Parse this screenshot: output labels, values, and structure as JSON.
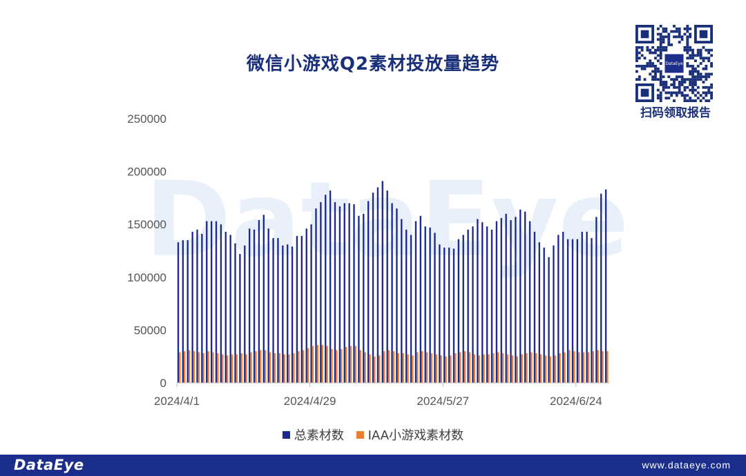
{
  "header": {
    "title": "微信小游戏Q2素材投放量趋势"
  },
  "qr": {
    "caption": "扫码领取报告",
    "logo_text": "DataEye"
  },
  "footer": {
    "brand": "DataEye",
    "website": "www.dataeye.com"
  },
  "watermark": "DataEye",
  "colors": {
    "total": "#1b2a8c",
    "iaa": "#ed7d31",
    "footer_bg": "#1b2e8c",
    "title": "#1a2f7a"
  },
  "chart_data": {
    "type": "bar",
    "title": "微信小游戏Q2素材投放量趋势",
    "xlabel": "",
    "ylabel": "",
    "ylim": [
      0,
      250000
    ],
    "yticks": [
      0,
      50000,
      100000,
      150000,
      200000,
      250000
    ],
    "ytick_labels": [
      "0",
      "50000",
      "100000",
      "150000",
      "200000",
      "250000"
    ],
    "x_tick_labels": [
      "2024/4/1",
      "2024/4/29",
      "2024/5/27",
      "2024/6/24"
    ],
    "x_tick_indices": [
      0,
      28,
      56,
      84
    ],
    "categories_start": "2024/4/1",
    "categories_end": "2024/6/30",
    "legend_position": "bottom",
    "grid": false,
    "series": [
      {
        "name": "总素材数",
        "values": [
          133000,
          135000,
          135000,
          143000,
          145000,
          141000,
          153000,
          153000,
          153000,
          150000,
          143000,
          140000,
          132000,
          122000,
          130000,
          146000,
          145000,
          154000,
          159000,
          146000,
          137000,
          137000,
          130000,
          131000,
          129000,
          139000,
          139000,
          146000,
          150000,
          165000,
          171000,
          178000,
          182000,
          171000,
          167000,
          170000,
          170000,
          169000,
          158000,
          160000,
          172000,
          180000,
          185000,
          191000,
          182000,
          170000,
          165000,
          155000,
          145000,
          140000,
          153000,
          158000,
          148000,
          147000,
          142000,
          131000,
          128000,
          128000,
          127000,
          136000,
          140000,
          145000,
          148000,
          155000,
          152000,
          148000,
          145000,
          153000,
          156000,
          160000,
          154000,
          157000,
          164000,
          162000,
          153000,
          143000,
          133000,
          128000,
          119000,
          130000,
          140000,
          143000,
          136000,
          136000,
          136000,
          143000,
          143000,
          137000,
          157000,
          179000,
          183000
        ]
      },
      {
        "name": "IAA小游戏素材数",
        "values": [
          29000,
          30000,
          31000,
          30000,
          29000,
          28000,
          30000,
          29000,
          28000,
          27000,
          26000,
          27000,
          27000,
          28000,
          27000,
          29000,
          30000,
          31000,
          31000,
          29000,
          28000,
          28000,
          27000,
          27000,
          28000,
          30000,
          31000,
          33000,
          35000,
          36000,
          36000,
          35000,
          32000,
          31000,
          32000,
          34000,
          35000,
          35000,
          31000,
          29000,
          27000,
          25000,
          26000,
          30000,
          31000,
          30000,
          28000,
          28000,
          27000,
          26000,
          29000,
          30000,
          29000,
          28000,
          27000,
          26000,
          25000,
          26000,
          28000,
          29000,
          30000,
          29000,
          27000,
          26000,
          27000,
          27000,
          28000,
          29000,
          28000,
          27000,
          26000,
          25000,
          27000,
          28000,
          29000,
          28000,
          27000,
          26000,
          25000,
          26000,
          28000,
          29000,
          31000,
          30000,
          29000,
          29000,
          29000,
          30000,
          31000,
          30000,
          30000
        ]
      }
    ]
  }
}
